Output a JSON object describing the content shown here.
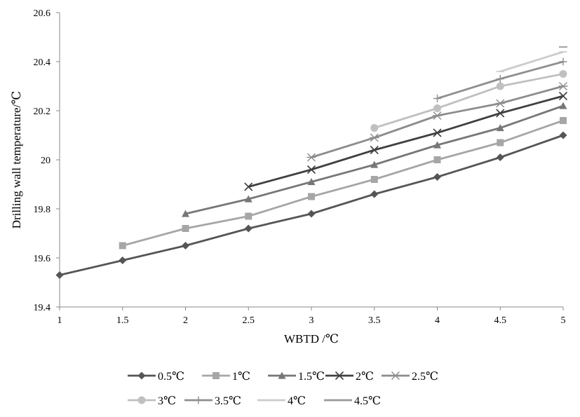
{
  "chart_data": {
    "type": "line",
    "title": "",
    "xlabel": "WBTD /℃",
    "ylabel": "Drilling wall temperature/℃",
    "xlim": [
      1,
      5
    ],
    "ylim": [
      19.4,
      20.6
    ],
    "x_ticks": [
      "1",
      "1.5",
      "2",
      "2.5",
      "3",
      "3.5",
      "4",
      "4.5",
      "5"
    ],
    "y_ticks": [
      "19.4",
      "19.6",
      "19.8",
      "20",
      "20.2",
      "20.4",
      "20.6"
    ],
    "grid": false,
    "legend_position": "bottom",
    "series": [
      {
        "name": "0.5℃",
        "color": "#555555",
        "marker": "diamond",
        "x": [
          1,
          1.5,
          2,
          2.5,
          3,
          3.5,
          4,
          4.5,
          5
        ],
        "y": [
          19.53,
          19.59,
          19.65,
          19.72,
          19.78,
          19.86,
          19.93,
          20.01,
          20.1
        ]
      },
      {
        "name": "1℃",
        "color": "#a6a6a6",
        "marker": "square",
        "x": [
          1.5,
          2,
          2.5,
          3,
          3.5,
          4,
          4.5,
          5
        ],
        "y": [
          19.65,
          19.72,
          19.77,
          19.85,
          19.92,
          20.0,
          20.07,
          20.16
        ]
      },
      {
        "name": "1.5℃",
        "color": "#777777",
        "marker": "triangle",
        "x": [
          2,
          2.5,
          3,
          3.5,
          4,
          4.5,
          5
        ],
        "y": [
          19.78,
          19.84,
          19.91,
          19.98,
          20.06,
          20.13,
          20.22
        ]
      },
      {
        "name": "2℃",
        "color": "#404040",
        "marker": "x",
        "x": [
          2.5,
          3,
          3.5,
          4,
          4.5,
          5
        ],
        "y": [
          19.89,
          19.96,
          20.04,
          20.11,
          20.19,
          20.26
        ]
      },
      {
        "name": "2.5℃",
        "color": "#8c8c8c",
        "marker": "star",
        "x": [
          3,
          3.5,
          4,
          4.5,
          5
        ],
        "y": [
          20.01,
          20.09,
          20.18,
          20.23,
          20.3
        ]
      },
      {
        "name": "3℃",
        "color": "#c0c0c0",
        "marker": "circle",
        "x": [
          3.5,
          4,
          4.5,
          5
        ],
        "y": [
          20.13,
          20.21,
          20.3,
          20.35
        ]
      },
      {
        "name": "3.5℃",
        "color": "#8f8f8f",
        "marker": "plus",
        "x": [
          4,
          4.5,
          5
        ],
        "y": [
          20.25,
          20.33,
          20.4
        ]
      },
      {
        "name": "4℃",
        "color": "#cccccc",
        "marker": "dash",
        "x": [
          4.5,
          5
        ],
        "y": [
          20.36,
          20.44
        ]
      },
      {
        "name": "4.5℃",
        "color": "#999999",
        "marker": "none",
        "x": [
          5
        ],
        "y": [
          20.46
        ]
      }
    ]
  }
}
